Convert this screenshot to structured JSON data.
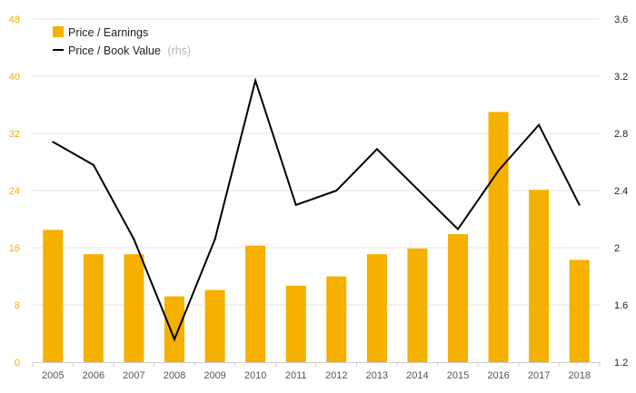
{
  "chart_data": {
    "type": "bar",
    "categories": [
      "2005",
      "2006",
      "2007",
      "2008",
      "2009",
      "2010",
      "2011",
      "2012",
      "2013",
      "2014",
      "2015",
      "2016",
      "2017",
      "2018"
    ],
    "series": [
      {
        "name": "Price / Earnings",
        "type": "bar",
        "axis": "left",
        "color": "#f5b000",
        "values": [
          18.5,
          15.1,
          15.1,
          9.2,
          10.1,
          16.3,
          10.7,
          12.0,
          15.1,
          15.9,
          17.9,
          35.0,
          24.1,
          14.3
        ]
      },
      {
        "name": "Price / Book Value",
        "name_suffix": "(rhs)",
        "type": "line",
        "axis": "right",
        "color": "#000000",
        "values": [
          2.74,
          2.58,
          2.06,
          1.36,
          2.06,
          3.17,
          2.3,
          2.4,
          2.69,
          2.41,
          2.13,
          2.54,
          2.86,
          2.3
        ]
      }
    ],
    "y_left": {
      "lim": [
        0,
        48
      ],
      "ticks": [
        "0",
        "8",
        "16",
        "24",
        "32",
        "40",
        "48"
      ],
      "color": "#f0b000"
    },
    "y_right": {
      "lim": [
        1.2,
        3.6
      ],
      "ticks": [
        "1.2",
        "1.6",
        "2",
        "2.4",
        "2.8",
        "3.2",
        "3.6"
      ],
      "color": "#222222"
    },
    "grid": true,
    "legend_position": "top-left",
    "title": "",
    "xlabel": "",
    "ylabel": ""
  }
}
